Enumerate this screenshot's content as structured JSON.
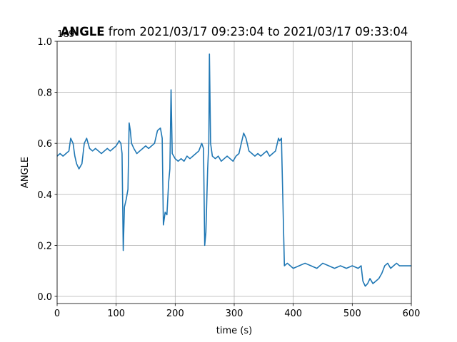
{
  "chart_data": {
    "type": "line",
    "title_name": "ANGLE",
    "title_range": "from 2021/03/17 09:23:04 to 2021/03/17 09:33:04",
    "offset_label": "1e9",
    "x_label": "time (s)",
    "y_label": "ANGLE",
    "color": "#1f77b4",
    "grid": true,
    "xlim": [
      0,
      600
    ],
    "xticks": [
      0,
      100,
      200,
      300,
      400,
      500,
      600
    ],
    "ylim": [
      -0.028,
      1.0
    ],
    "yticks": [
      {
        "value": 0,
        "label": "0.0"
      },
      {
        "value": 0.2,
        "label": "0.2"
      },
      {
        "value": 0.4,
        "label": "0.4"
      },
      {
        "value": 0.6,
        "label": "0.6"
      },
      {
        "value": 0.8,
        "label": "0.8"
      },
      {
        "value": 1.0,
        "label": "1.0"
      }
    ],
    "x": [
      0,
      5,
      10,
      15,
      20,
      23,
      27,
      30,
      33,
      37,
      42,
      46,
      50,
      55,
      60,
      65,
      70,
      75,
      80,
      85,
      90,
      95,
      100,
      105,
      108,
      110,
      112,
      114,
      117,
      120,
      122,
      124,
      126,
      130,
      135,
      140,
      145,
      150,
      155,
      160,
      165,
      170,
      175,
      178,
      180,
      183,
      186,
      189,
      191,
      193,
      195,
      200,
      205,
      210,
      215,
      220,
      225,
      230,
      235,
      240,
      245,
      248,
      250,
      252,
      255,
      257,
      258,
      260,
      263,
      268,
      273,
      278,
      283,
      288,
      293,
      298,
      303,
      308,
      312,
      316,
      320,
      325,
      330,
      335,
      340,
      345,
      350,
      355,
      360,
      365,
      370,
      375,
      377,
      380,
      385,
      390,
      395,
      400,
      410,
      420,
      430,
      440,
      450,
      460,
      470,
      480,
      490,
      500,
      510,
      515,
      518,
      522,
      526,
      530,
      535,
      540,
      545,
      550,
      555,
      560,
      565,
      570,
      575,
      580,
      590,
      600
    ],
    "values": [
      0.55,
      0.56,
      0.55,
      0.56,
      0.57,
      0.62,
      0.6,
      0.55,
      0.52,
      0.5,
      0.52,
      0.6,
      0.62,
      0.58,
      0.57,
      0.58,
      0.57,
      0.56,
      0.57,
      0.58,
      0.57,
      0.58,
      0.59,
      0.61,
      0.6,
      0.56,
      0.18,
      0.35,
      0.38,
      0.42,
      0.68,
      0.65,
      0.6,
      0.58,
      0.56,
      0.57,
      0.58,
      0.59,
      0.58,
      0.59,
      0.6,
      0.65,
      0.66,
      0.62,
      0.28,
      0.33,
      0.32,
      0.45,
      0.5,
      0.81,
      0.56,
      0.54,
      0.53,
      0.54,
      0.53,
      0.55,
      0.54,
      0.55,
      0.56,
      0.57,
      0.6,
      0.58,
      0.2,
      0.25,
      0.5,
      0.6,
      0.95,
      0.6,
      0.55,
      0.54,
      0.55,
      0.53,
      0.54,
      0.55,
      0.54,
      0.53,
      0.55,
      0.56,
      0.6,
      0.64,
      0.62,
      0.57,
      0.56,
      0.55,
      0.56,
      0.55,
      0.56,
      0.57,
      0.55,
      0.56,
      0.57,
      0.62,
      0.61,
      0.62,
      0.12,
      0.13,
      0.12,
      0.11,
      0.12,
      0.13,
      0.12,
      0.11,
      0.13,
      0.12,
      0.11,
      0.12,
      0.11,
      0.12,
      0.11,
      0.12,
      0.06,
      0.04,
      0.05,
      0.07,
      0.05,
      0.06,
      0.07,
      0.09,
      0.12,
      0.13,
      0.11,
      0.12,
      0.13,
      0.12,
      0.12,
      0.12
    ]
  }
}
